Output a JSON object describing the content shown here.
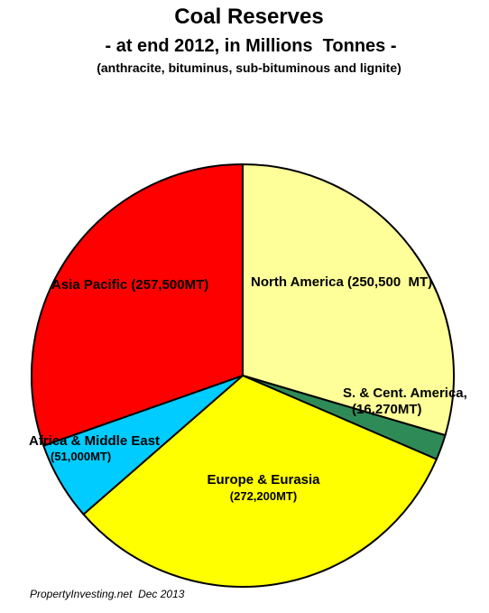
{
  "chart_data": {
    "type": "pie",
    "title": "Coal Reserves",
    "subtitle": "- at end 2012, in Millions  Tonnes -",
    "note": "(anthracite, bituminus, sub-bituminous and lignite)",
    "source": "PropertyInvesting.net  Dec 2013",
    "slices": [
      {
        "label": "North America",
        "value_label": "(250,500  MT)",
        "value": 250500,
        "color": "#ffff99"
      },
      {
        "label": "S. & Cent. America,",
        "value_label": "(16,270MT)",
        "value": 16270,
        "color": "#2e8b57"
      },
      {
        "label": "Europe & Eurasia",
        "value_label": "(272,200MT)",
        "value": 272200,
        "color": "#ffff00"
      },
      {
        "label": "Africa & Middle East",
        "value_label": "(51,000MT)",
        "value": 51000,
        "color": "#00ccff"
      },
      {
        "label": "Asia Pacific",
        "value_label": "(257,500MT)",
        "value": 257500,
        "color": "#ff0000"
      }
    ]
  }
}
